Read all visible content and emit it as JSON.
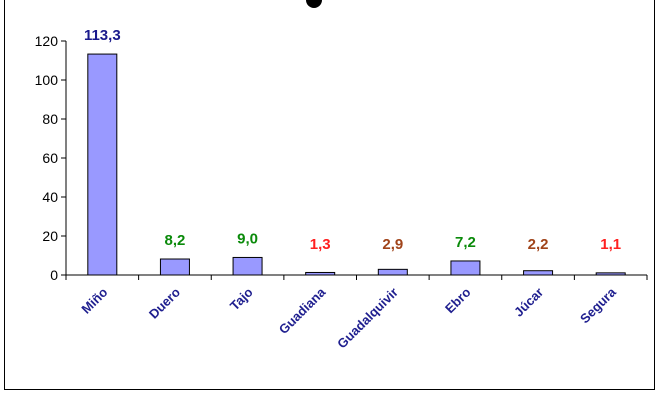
{
  "chart_data": {
    "type": "bar",
    "categories": [
      "Miño",
      "Duero",
      "Tajo",
      "Guadiana",
      "Guadalquivir",
      "Ebro",
      "Júcar",
      "Segura"
    ],
    "values": [
      113.3,
      8.2,
      9.0,
      1.3,
      2.9,
      7.2,
      2.2,
      1.1
    ],
    "data_labels": [
      "113,3",
      "8,2",
      "9,0",
      "1,3",
      "2,9",
      "7,2",
      "2,2",
      "1,1"
    ],
    "label_colors": [
      "#1a1a8c",
      "#0a8a0a",
      "#0a8a0a",
      "#ff2020",
      "#a0441a",
      "#0a8a0a",
      "#a0441a",
      "#ff2020"
    ],
    "bar_color": "#9999ff",
    "ylim": [
      0,
      120
    ],
    "yticks": [
      0,
      20,
      40,
      60,
      80,
      100,
      120
    ],
    "grid": false,
    "title": "",
    "xlabel": "",
    "ylabel": ""
  }
}
